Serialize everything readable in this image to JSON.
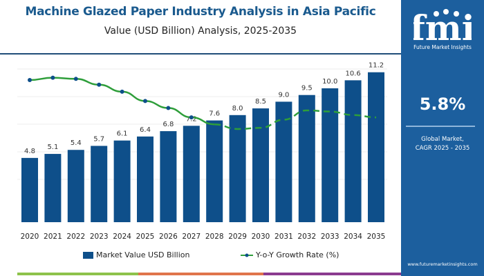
{
  "header": {
    "title": "Machine Glazed Paper Industry Analysis in Asia Pacific",
    "subtitle": "Value (USD Billion) Analysis, 2025-2035"
  },
  "panel": {
    "logo_text": "fmi",
    "logo_subtitle": "Future Market Insights",
    "cagr_value": "5.8%",
    "cagr_label_1": "Global Market,",
    "cagr_label_2": "CAGR 2025 - 2035",
    "url": "www.futuremarketinsights.com"
  },
  "colors": {
    "bar": "#0e4f8a",
    "line": "#2e9e3a",
    "marker": "#0e4f8a",
    "panel": "#1c5f9e",
    "strip": [
      "#8dc24a",
      "#e0744a",
      "#8a3a8f"
    ]
  },
  "chart_data": {
    "type": "bar+line",
    "categories": [
      "2020",
      "2021",
      "2022",
      "2023",
      "2024",
      "2025",
      "2026",
      "2027",
      "2028",
      "2029",
      "2030",
      "2031",
      "2032",
      "2033",
      "2034",
      "2035"
    ],
    "series": [
      {
        "name": "Market Value USD Billion",
        "type": "bar",
        "values": [
          4.8,
          5.1,
          5.4,
          5.7,
          6.1,
          6.4,
          6.8,
          7.2,
          7.6,
          8.0,
          8.5,
          9.0,
          9.5,
          10.0,
          10.6,
          11.2
        ],
        "labels": [
          "4.8",
          "5.1",
          "5.4",
          "5.7",
          "6.1",
          "6.4",
          "6.8",
          "7.2",
          "7.6",
          "8.0",
          "8.5",
          "9.0",
          "9.5",
          "10.0",
          "10.6",
          "11.2"
        ]
      },
      {
        "name": "Y-o-Y Growth Rate (%)",
        "type": "line",
        "values": [
          6.2,
          6.3,
          6.25,
          6.0,
          5.7,
          5.3,
          5.0,
          4.6,
          4.3,
          4.1,
          4.15,
          4.5,
          4.9,
          4.85,
          4.7,
          4.6
        ],
        "style_note": "solid with markers through 2028, dashed afterwards"
      }
    ],
    "legend": "bottom",
    "grid": true
  }
}
